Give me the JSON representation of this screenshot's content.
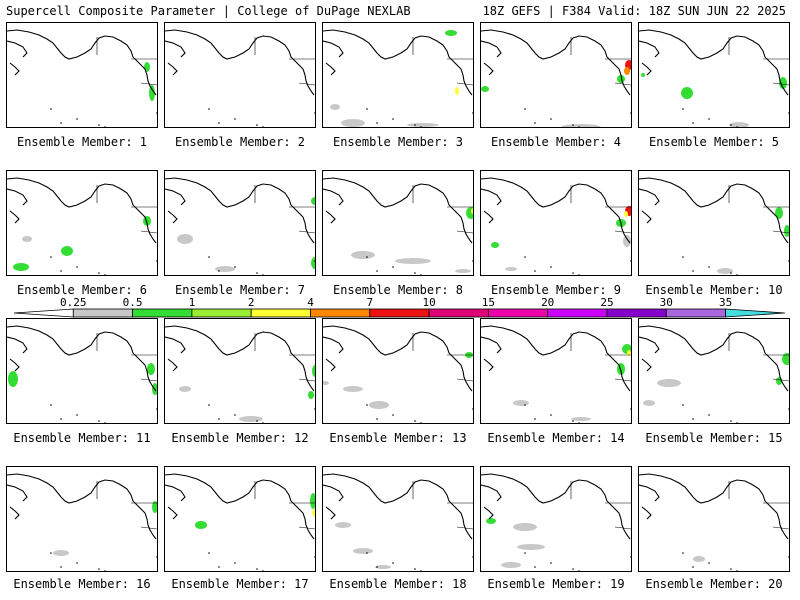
{
  "header": {
    "title": "Supercell Composite Parameter | College of DuPage NEXLAB",
    "run_info": "18Z GEFS | F384 Valid: 18Z SUN JUN 22 2025"
  },
  "panels": [
    {
      "label": "Ensemble Member: 1"
    },
    {
      "label": "Ensemble Member: 2"
    },
    {
      "label": "Ensemble Member: 3"
    },
    {
      "label": "Ensemble Member: 4"
    },
    {
      "label": "Ensemble Member: 5"
    },
    {
      "label": "Ensemble Member: 6"
    },
    {
      "label": "Ensemble Member: 7"
    },
    {
      "label": "Ensemble Member: 8"
    },
    {
      "label": "Ensemble Member: 9"
    },
    {
      "label": "Ensemble Member: 10"
    },
    {
      "label": "Ensemble Member: 11"
    },
    {
      "label": "Ensemble Member: 12"
    },
    {
      "label": "Ensemble Member: 13"
    },
    {
      "label": "Ensemble Member: 14"
    },
    {
      "label": "Ensemble Member: 15"
    },
    {
      "label": "Ensemble Member: 16"
    },
    {
      "label": "Ensemble Member: 17"
    },
    {
      "label": "Ensemble Member: 18"
    },
    {
      "label": "Ensemble Member: 19"
    },
    {
      "label": "Ensemble Member: 20"
    }
  ],
  "colorbar": {
    "labels": [
      "0.25",
      "0.5",
      "1",
      "2",
      "4",
      "7",
      "10",
      "15",
      "20",
      "25",
      "30",
      "35"
    ],
    "colors": [
      "#ffffff",
      "#c8c8c8",
      "#33dd33",
      "#99ee33",
      "#ffff33",
      "#ff8800",
      "#ee1111",
      "#dd0077",
      "#ee00aa",
      "#cc00ff",
      "#8800cc",
      "#aa66dd",
      "#44dddd"
    ]
  }
}
